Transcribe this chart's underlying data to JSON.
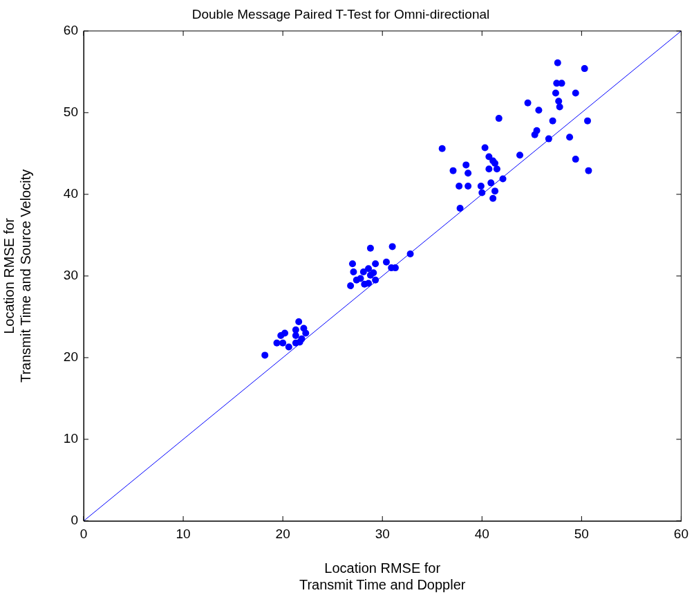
{
  "chart_data": {
    "type": "scatter",
    "title": "Double Message Paired T-Test for Omni-directional",
    "xlabel": "Location RMSE for\nTransmit Time and Doppler",
    "ylabel": "Location RMSE for\nTransmit Time and Source Velocity",
    "xlim": [
      0,
      60
    ],
    "ylim": [
      0,
      60
    ],
    "xticks": [
      0,
      10,
      20,
      30,
      40,
      50,
      60
    ],
    "yticks": [
      0,
      10,
      20,
      30,
      40,
      50,
      60
    ],
    "grid": false,
    "legend": false,
    "marker": "circle",
    "series": [
      {
        "type": "scatter",
        "color": "#0000ff",
        "x": [
          18.2,
          21.6,
          19.4,
          20.0,
          20.6,
          19.8,
          20.2,
          21.3,
          22.1,
          22.3,
          21.3,
          21.9,
          21.3,
          21.7,
          28.8,
          31.0,
          32.8,
          27.0,
          29.3,
          30.4,
          30.9,
          31.3,
          27.1,
          28.1,
          28.6,
          29.1,
          28.8,
          27.4,
          27.8,
          29.3,
          28.2,
          28.6,
          26.8,
          36.0,
          40.3,
          40.7,
          41.1,
          41.3,
          38.4,
          37.1,
          40.7,
          41.5,
          38.6,
          42.1,
          37.7,
          38.6,
          39.9,
          40.9,
          40.0,
          41.3,
          41.1,
          37.8,
          41.7,
          47.6,
          50.3,
          47.5,
          48.0,
          47.4,
          49.4,
          44.6,
          47.7,
          47.8,
          45.7,
          47.1,
          50.6,
          45.5,
          45.3,
          46.7,
          48.8,
          43.8,
          49.4,
          50.7
        ],
        "values": [
          20.3,
          24.4,
          21.8,
          21.8,
          21.3,
          22.7,
          23.0,
          23.4,
          23.6,
          23.0,
          22.7,
          22.3,
          21.8,
          21.9,
          33.4,
          33.6,
          32.7,
          31.5,
          31.5,
          31.7,
          31.0,
          31.0,
          30.5,
          30.5,
          30.9,
          30.4,
          30.1,
          29.5,
          29.7,
          29.5,
          29.0,
          29.1,
          28.8,
          45.6,
          45.7,
          44.6,
          44.1,
          43.8,
          43.6,
          42.9,
          43.1,
          43.1,
          42.6,
          41.9,
          41.0,
          41.0,
          41.0,
          41.4,
          40.2,
          40.4,
          39.5,
          38.3,
          49.3,
          56.1,
          55.4,
          53.6,
          53.6,
          52.4,
          52.4,
          51.2,
          51.4,
          50.7,
          50.3,
          49.0,
          49.0,
          47.8,
          47.3,
          46.8,
          47.0,
          44.8,
          44.3,
          42.9
        ]
      },
      {
        "type": "line",
        "color": "#0000ff",
        "x": [
          0,
          60
        ],
        "values": [
          0,
          60
        ],
        "marker": "none"
      }
    ]
  }
}
